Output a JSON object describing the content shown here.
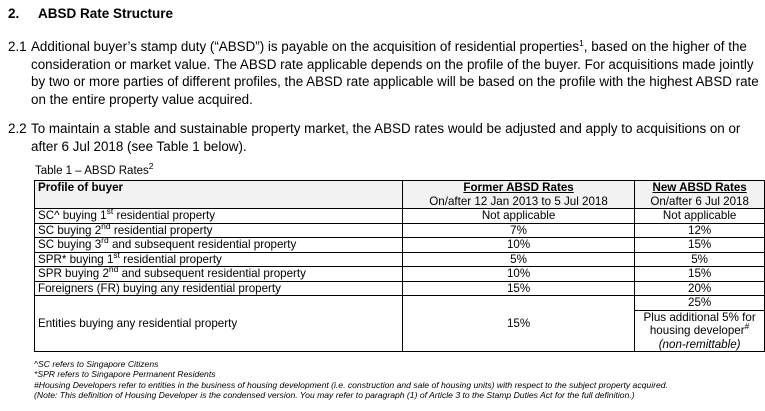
{
  "section": {
    "number": "2.",
    "title": "ABSD Rate Structure"
  },
  "para1": {
    "number": "2.1",
    "text_before_sup": "Additional buyer’s stamp duty (“ABSD”) is payable on the acquisition of residential properties",
    "sup": "1",
    "text_after_sup": ", based on the higher of the consideration or market value. The ABSD rate applicable depends on the profile of the buyer. For acquisitions made jointly by two or more parties of different profiles, the ABSD rate applicable will be based on the profile with the highest ABSD rate on the entire property value acquired."
  },
  "para2": {
    "number": "2.2",
    "text": "To maintain a stable and sustainable property market, the ABSD rates would be adjusted and apply to acquisitions on or after 6 Jul 2018 (see Table 1 below)."
  },
  "table": {
    "caption": "Table 1 – ABSD Rates",
    "caption_sup": "2",
    "headers": {
      "profile": "Profile of buyer",
      "former": "Former ABSD Rates",
      "former_sub": "On/after 12 Jan 2013 to 5 Jul 2018",
      "new": "New ABSD Rates",
      "new_sub": "On/after 6 Jul 2018"
    },
    "rows": [
      {
        "pre": "SC^ buying 1",
        "sup": "st",
        "post": " residential property",
        "former": "Not applicable",
        "new": "Not applicable"
      },
      {
        "pre": "SC buying 2",
        "sup": "nd",
        "post": " residential property",
        "former": "7%",
        "new": "12%"
      },
      {
        "pre": "SC buying 3",
        "sup": "rd",
        "post": " and subsequent residential property",
        "former": "10%",
        "new": "15%"
      },
      {
        "pre": "SPR* buying 1",
        "sup": "st",
        "post": " residential property",
        "former": "5%",
        "new": "5%"
      },
      {
        "pre": "SPR buying 2",
        "sup": "nd",
        "post": " and subsequent residential property",
        "former": "10%",
        "new": "15%"
      },
      {
        "pre": "Foreigners (FR) buying any residential property",
        "sup": "",
        "post": "",
        "former": "15%",
        "new": "20%"
      }
    ],
    "entities": {
      "profile": "Entities buying any residential property",
      "former": "15%",
      "new_rate": "25%",
      "new_extra_1": "Plus additional 5% for",
      "new_extra_2": "housing developer",
      "new_extra_sup": "#",
      "new_extra_3": "(non-remittable)"
    }
  },
  "notes": [
    "^SC refers to Singapore Citizens",
    "*SPR refers to Singapore Permanent Residents",
    "#Housing Developers refer to entities in the business of housing development (i.e. construction and sale of housing units) with respect to the subject property acquired.",
    "(Note: This definition of Housing Developer is the condensed version. You may refer to paragraph (1) of Article 3 to the Stamp Duties Act for the full definition.)"
  ]
}
